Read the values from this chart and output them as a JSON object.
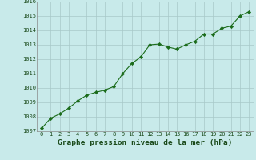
{
  "x": [
    0,
    1,
    2,
    3,
    4,
    5,
    6,
    7,
    8,
    9,
    10,
    11,
    12,
    13,
    14,
    15,
    16,
    17,
    18,
    19,
    20,
    21,
    22,
    23
  ],
  "y": [
    1007.2,
    1007.9,
    1008.2,
    1008.6,
    1009.1,
    1009.5,
    1009.7,
    1009.85,
    1010.1,
    1011.0,
    1011.7,
    1012.15,
    1013.0,
    1013.05,
    1012.85,
    1012.7,
    1013.0,
    1013.25,
    1013.75,
    1013.75,
    1014.15,
    1014.3,
    1015.0,
    1015.3
  ],
  "line_color": "#1a6b1a",
  "marker_color": "#1a6b1a",
  "bg_color": "#c8eaea",
  "grid_color": "#a8c8c8",
  "spine_color": "#888888",
  "title": "Graphe pression niveau de la mer (hPa)",
  "title_color": "#1a4a1a",
  "title_fontsize": 6.8,
  "ylim_min": 1007,
  "ylim_max": 1016,
  "xlim_min": -0.5,
  "xlim_max": 23.5,
  "ytick_step": 1,
  "xtick_values": [
    0,
    1,
    2,
    3,
    4,
    5,
    6,
    7,
    8,
    9,
    10,
    11,
    12,
    13,
    14,
    15,
    16,
    17,
    18,
    19,
    20,
    21,
    22,
    23
  ],
  "tick_fontsize": 5.0
}
